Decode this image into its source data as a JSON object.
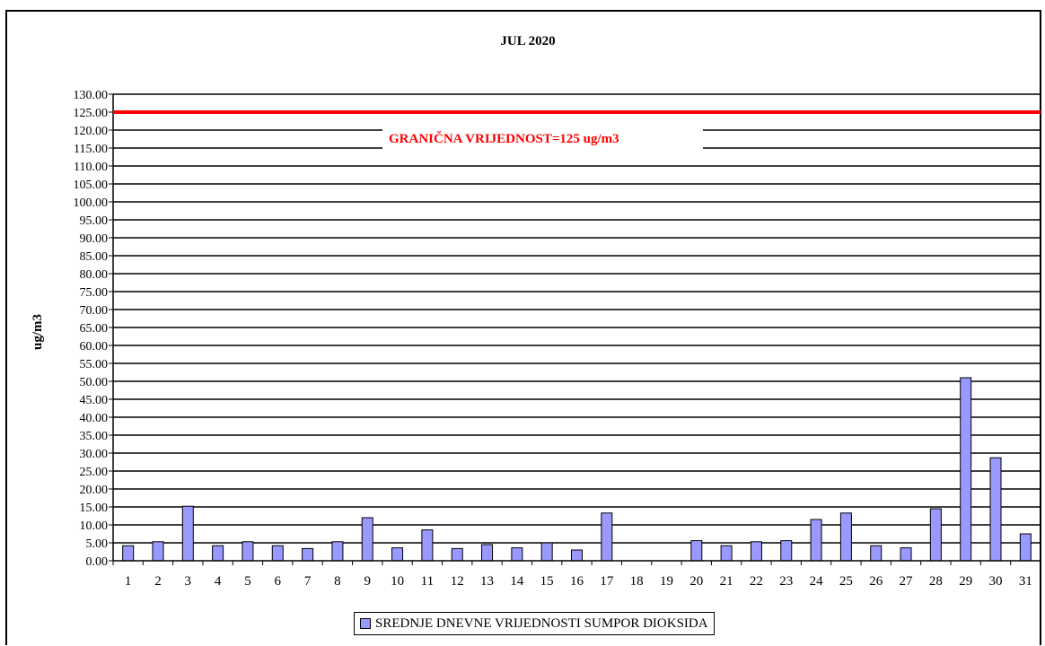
{
  "chart_data": {
    "type": "bar",
    "title": "JUL 2020",
    "ylabel": "ug/m3",
    "xlabel": "",
    "ylim": [
      0,
      130
    ],
    "ytick_step": 5,
    "y_tick_labels": [
      "0.00",
      "5.00",
      "10.00",
      "15.00",
      "20.00",
      "25.00",
      "30.00",
      "35.00",
      "40.00",
      "45.00",
      "50.00",
      "55.00",
      "60.00",
      "65.00",
      "70.00",
      "75.00",
      "80.00",
      "85.00",
      "90.00",
      "95.00",
      "100.00",
      "105.00",
      "110.00",
      "115.00",
      "120.00",
      "125.00",
      "130.00"
    ],
    "categories": [
      "1",
      "2",
      "3",
      "4",
      "5",
      "6",
      "7",
      "8",
      "9",
      "10",
      "11",
      "12",
      "13",
      "14",
      "15",
      "16",
      "17",
      "18",
      "19",
      "20",
      "21",
      "22",
      "23",
      "24",
      "25",
      "26",
      "27",
      "28",
      "29",
      "30",
      "31"
    ],
    "series": [
      {
        "name": "SREDNJE DNEVNE VRIJEDNOSTI SUMPOR DIOKSIDA",
        "color": "#9999ff",
        "values": [
          4.2,
          5.3,
          15.2,
          4.2,
          5.3,
          4.2,
          3.4,
          5.3,
          12.0,
          3.6,
          8.6,
          3.4,
          4.5,
          3.6,
          5.0,
          3.0,
          13.3,
          null,
          null,
          5.6,
          4.2,
          5.3,
          5.6,
          11.5,
          13.3,
          4.2,
          3.6,
          14.5,
          51.0,
          28.7,
          7.5
        ]
      }
    ],
    "limit_line": {
      "value": 125,
      "label": "GRANIČNA VRIJEDNOST=125 ug/m3",
      "color": "#ff0000"
    },
    "grid": true,
    "legend_position": "bottom"
  }
}
